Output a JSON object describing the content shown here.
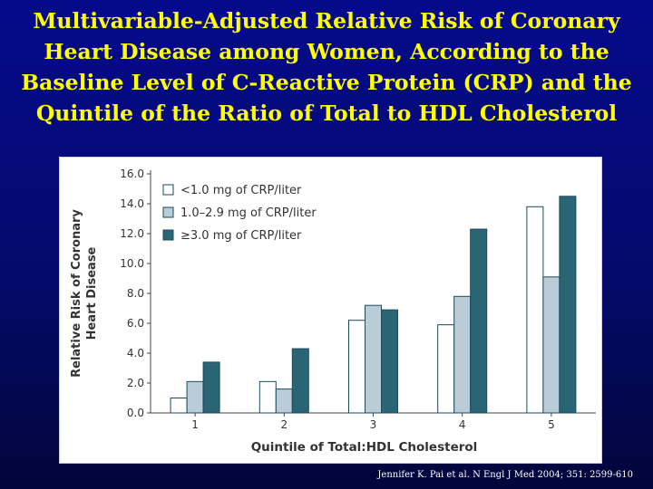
{
  "title_lines": [
    "Multivariable-Adjusted Relative Risk of Coronary",
    "Heart Disease among Women,  According to the",
    "Baseline Level of C-Reactive Protein (CRP) and the",
    "Quintile of the Ratio of Total to HDL Cholesterol"
  ],
  "citation": "Jennifer K. Pai et al. N Engl J Med 2004; 351: 2599-610",
  "colors": {
    "background": "#050a8c",
    "title": "#ffff00",
    "series_1": "#ffffff",
    "series_2": "#b9ccd8",
    "series_3": "#2a6576",
    "bar_outline": "#1e4a58"
  },
  "chart_data": {
    "type": "bar",
    "categories": [
      "1",
      "2",
      "3",
      "4",
      "5"
    ],
    "series": [
      {
        "name": "<1.0 mg of CRP/liter",
        "values": [
          1.0,
          2.1,
          6.2,
          5.9,
          13.8
        ]
      },
      {
        "name": "1.0–2.9 mg of CRP/liter",
        "values": [
          2.1,
          1.6,
          7.2,
          7.8,
          9.1
        ]
      },
      {
        "name": "≥3.0 mg of CRP/liter",
        "values": [
          3.4,
          4.3,
          6.9,
          12.3,
          14.5
        ]
      }
    ],
    "xlabel": "Quintile of Total:HDL Cholesterol",
    "ylabel_lines": [
      "Relative Risk of Coronary",
      "Heart Disease"
    ],
    "yticks": [
      "0.0",
      "2.0",
      "4.0",
      "6.0",
      "8.0",
      "10.0",
      "12.0",
      "14.0",
      "16.0"
    ],
    "ylim": [
      0,
      16
    ],
    "legend_position": "top-left",
    "grid": false
  }
}
